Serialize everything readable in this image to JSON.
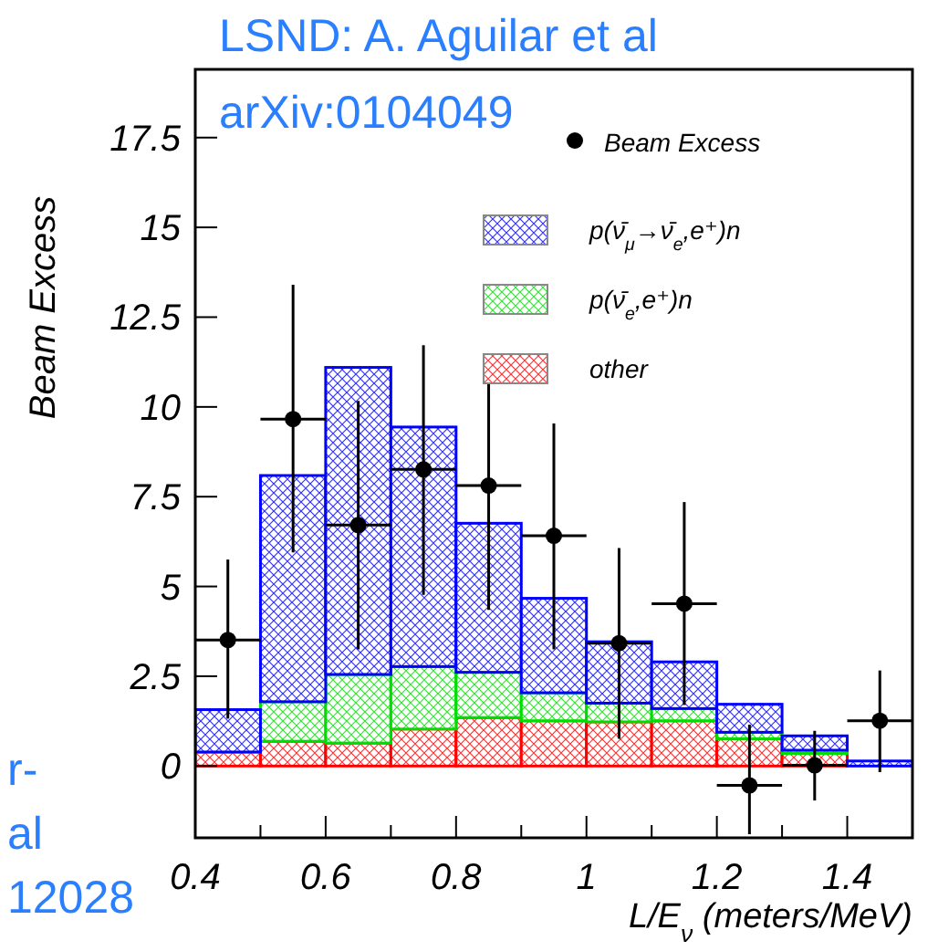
{
  "chart_data": {
    "type": "bar",
    "ylabel": "Beam Excess",
    "xlabel": "L/E$_{ν}$ (meters/MeV)",
    "annotations": [
      "LSND: A. Aguilar et al",
      "arXiv:0104049",
      "r-",
      "al",
      "12028"
    ],
    "x": [
      0.45,
      0.55,
      0.65,
      0.75,
      0.85,
      0.95,
      1.05,
      1.15,
      1.25,
      1.35,
      1.45
    ],
    "stacked": true,
    "series": [
      {
        "name": "Beam Excess",
        "type": "scatter",
        "color": "#000000",
        "x": [
          0.45,
          0.55,
          0.65,
          0.75,
          0.85,
          0.95,
          1.05,
          1.15,
          1.25,
          1.35,
          1.45
        ],
        "values": [
          3.51,
          9.66,
          6.71,
          8.26,
          7.81,
          6.41,
          3.42,
          4.52,
          -0.54,
          0.02,
          1.26
        ],
        "errors": [
          [
            1.32,
            5.75
          ],
          [
            5.95,
            13.4
          ],
          [
            3.25,
            10.17
          ],
          [
            4.77,
            11.72
          ],
          [
            4.35,
            11.26
          ],
          [
            3.25,
            9.54
          ],
          [
            0.76,
            6.07
          ],
          [
            1.7,
            7.35
          ],
          [
            -1.9,
            1.15
          ],
          [
            -0.96,
            0.98
          ],
          [
            -0.17,
            2.66
          ]
        ],
        "xerrors": [
          0.05,
          0.05,
          0.05,
          0.05,
          0.05,
          0.05,
          0.05,
          0.05,
          0.05,
          0.05,
          0.05
        ]
      },
      {
        "name": "other",
        "color": "#ff0000",
        "values": [
          0.39,
          0.69,
          0.64,
          1.03,
          1.35,
          1.26,
          1.23,
          1.26,
          0.76,
          0.35,
          null
        ]
      },
      {
        "name": "p(ν̄$_{e}$,e⁺)n",
        "color": "#00dd00",
        "values": [
          null,
          1.1,
          1.91,
          1.74,
          1.26,
          0.78,
          0.52,
          0.34,
          0.18,
          0.09,
          0.0
        ]
      },
      {
        "name": "p(ν̄$_{μ}$→ν̄$_{e}$,e⁺)n",
        "color": "#0000ff",
        "values": [
          1.18,
          6.3,
          8.55,
          6.67,
          4.15,
          2.63,
          1.71,
          1.3,
          0.78,
          0.4,
          0.14
        ]
      }
    ],
    "xlim": [
      0.4,
      1.5
    ],
    "xticks": [
      0.4,
      {
        "value": 0.5,
        "label": null
      },
      0.6,
      {
        "value": 0.7,
        "label": null
      },
      0.8,
      {
        "value": 0.9,
        "label": null
      },
      1,
      {
        "value": 1.1,
        "label": null
      },
      1.2,
      {
        "value": 1.3,
        "label": null
      },
      1.4,
      {
        "value": 1.5,
        "label": null
      }
    ],
    "ylim": [
      -2,
      19.4
    ],
    "yticks": [
      0,
      2.5,
      5,
      7.5,
      10,
      12.5,
      15,
      17.5
    ],
    "marker": "circle",
    "legend": "top right",
    "grid": false
  }
}
